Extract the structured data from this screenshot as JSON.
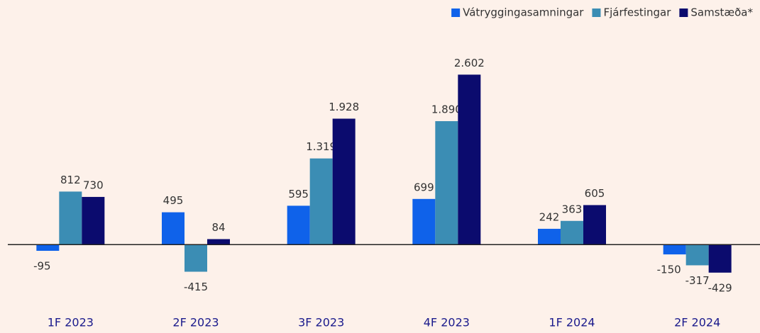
{
  "chart_data": {
    "type": "bar",
    "categories": [
      "1F 2023",
      "2F 2023",
      "3F 2023",
      "4F 2023",
      "1F 2024",
      "2F 2024"
    ],
    "series": [
      {
        "name": "Vátryggingasamningar",
        "color": "#0f62ea",
        "values": [
          -95,
          495,
          595,
          699,
          242,
          -150
        ],
        "value_labels": [
          "-95",
          "495",
          "595",
          "699",
          "242",
          "-150"
        ]
      },
      {
        "name": "Fjárfestingar",
        "color": "#3b8db4",
        "values": [
          812,
          -415,
          1319,
          1890,
          363,
          -317
        ],
        "value_labels": [
          "812",
          "-415",
          "1.319",
          "1.890",
          "363",
          "-317"
        ]
      },
      {
        "name": "Samstæða*",
        "color": "#0b0b6e",
        "values": [
          730,
          84,
          1928,
          2602,
          605,
          -429
        ],
        "value_labels": [
          "730",
          "84",
          "1.928",
          "2.602",
          "605",
          "-429"
        ]
      }
    ],
    "ylim": [
      -800,
      3300
    ],
    "legend": "top-right"
  }
}
